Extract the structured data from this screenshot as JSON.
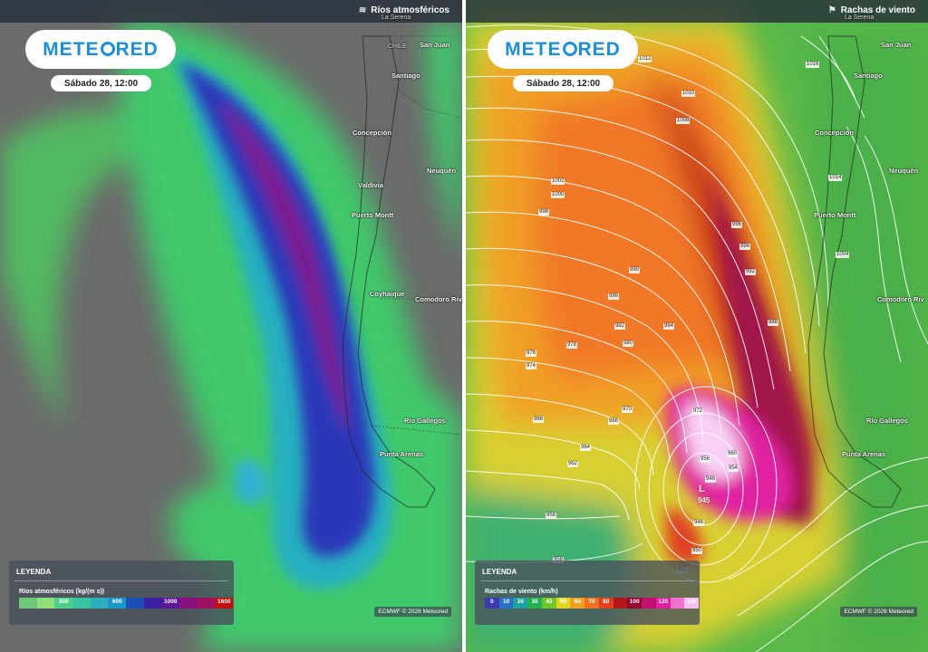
{
  "left_panel": {
    "layer_title": "Ríos atmosféricos",
    "logo_text": "METEORED",
    "date": "Sábado 28, 12:00",
    "cities": [
      {
        "name": "La Serena",
        "faint": true
      },
      {
        "name": "CHILE",
        "faint": true
      },
      {
        "name": "San Juan",
        "faint": false
      },
      {
        "name": "Santiago",
        "faint": false
      },
      {
        "name": "Concepción",
        "faint": false
      },
      {
        "name": "Neuquén",
        "faint": false
      },
      {
        "name": "Valdivia",
        "faint": false
      },
      {
        "name": "Puerto Montt",
        "faint": false
      },
      {
        "name": "Coyhaique",
        "faint": false
      },
      {
        "name": "Comodoro Riv",
        "faint": false
      },
      {
        "name": "Río Gallegos",
        "faint": false
      },
      {
        "name": "Punta Arenas",
        "faint": false
      }
    ],
    "legend": {
      "title": "LEYENDA",
      "variable": "Ríos atmosféricos (kg/(m s))",
      "bins": [
        {
          "color": "#6fc77a",
          "label": ""
        },
        {
          "color": "#8fe07a",
          "label": ""
        },
        {
          "color": "#4fd08a",
          "label": "300"
        },
        {
          "color": "#38c4a0",
          "label": ""
        },
        {
          "color": "#2cb0c0",
          "label": ""
        },
        {
          "color": "#1c98c8",
          "label": "600"
        },
        {
          "color": "#1a4fb8",
          "label": ""
        },
        {
          "color": "#3a1fa0",
          "label": ""
        },
        {
          "color": "#5a1898",
          "label": "1000"
        },
        {
          "color": "#8a1080",
          "label": ""
        },
        {
          "color": "#a01060",
          "label": ""
        },
        {
          "color": "#c01010",
          "label": "1600"
        }
      ]
    },
    "credit": "ECMWF © 2026 Meteored"
  },
  "right_panel": {
    "layer_title": "Rachas de viento",
    "logo_text": "METEORED",
    "date": "Sábado 28, 12:00",
    "cities": [
      {
        "name": "La Serena",
        "faint": true
      },
      {
        "name": "San Juan",
        "faint": false
      },
      {
        "name": "Santiago",
        "faint": false
      },
      {
        "name": "Concepción",
        "faint": false
      },
      {
        "name": "Neuquén",
        "faint": false
      },
      {
        "name": "Puerto Montt",
        "faint": false
      },
      {
        "name": "Comodoro Riv",
        "faint": false
      },
      {
        "name": "Río Gallegos",
        "faint": false
      },
      {
        "name": "Punta Arenas",
        "faint": false
      }
    ],
    "isobars": [
      "1012",
      "1010",
      "1008",
      "1016",
      "1014",
      "1002",
      "1000",
      "998",
      "996",
      "994",
      "992",
      "990",
      "986",
      "984",
      "982",
      "980",
      "978",
      "976",
      "974",
      "972",
      "970",
      "968",
      "966",
      "964",
      "962",
      "960",
      "958",
      "956",
      "954",
      "950",
      "948",
      "946",
      "958",
      "952",
      "988",
      "1004"
    ],
    "low_symbol": "L",
    "low_value": "945",
    "legend": {
      "title": "LEYENDA",
      "variable": "Rachas de viento (km/h)",
      "bins": [
        {
          "color": "#3a3ab0",
          "label": "0"
        },
        {
          "color": "#2a70c8",
          "label": "10"
        },
        {
          "color": "#20a0a0",
          "label": "20"
        },
        {
          "color": "#20b050",
          "label": "30"
        },
        {
          "color": "#70c828",
          "label": "40"
        },
        {
          "color": "#e0d820",
          "label": "50"
        },
        {
          "color": "#f0a020",
          "label": "60"
        },
        {
          "color": "#f07020",
          "label": "70"
        },
        {
          "color": "#e04020",
          "label": "80"
        },
        {
          "color": "#b01818",
          "label": ""
        },
        {
          "color": "#900030",
          "label": "100"
        },
        {
          "color": "#c01070",
          "label": ""
        },
        {
          "color": "#e020a0",
          "label": "120"
        },
        {
          "color": "#f070d0",
          "label": ""
        },
        {
          "color": "#f8c0f0",
          "label": "140"
        }
      ]
    },
    "credit": "ECMWF © 2026 Meteored"
  }
}
